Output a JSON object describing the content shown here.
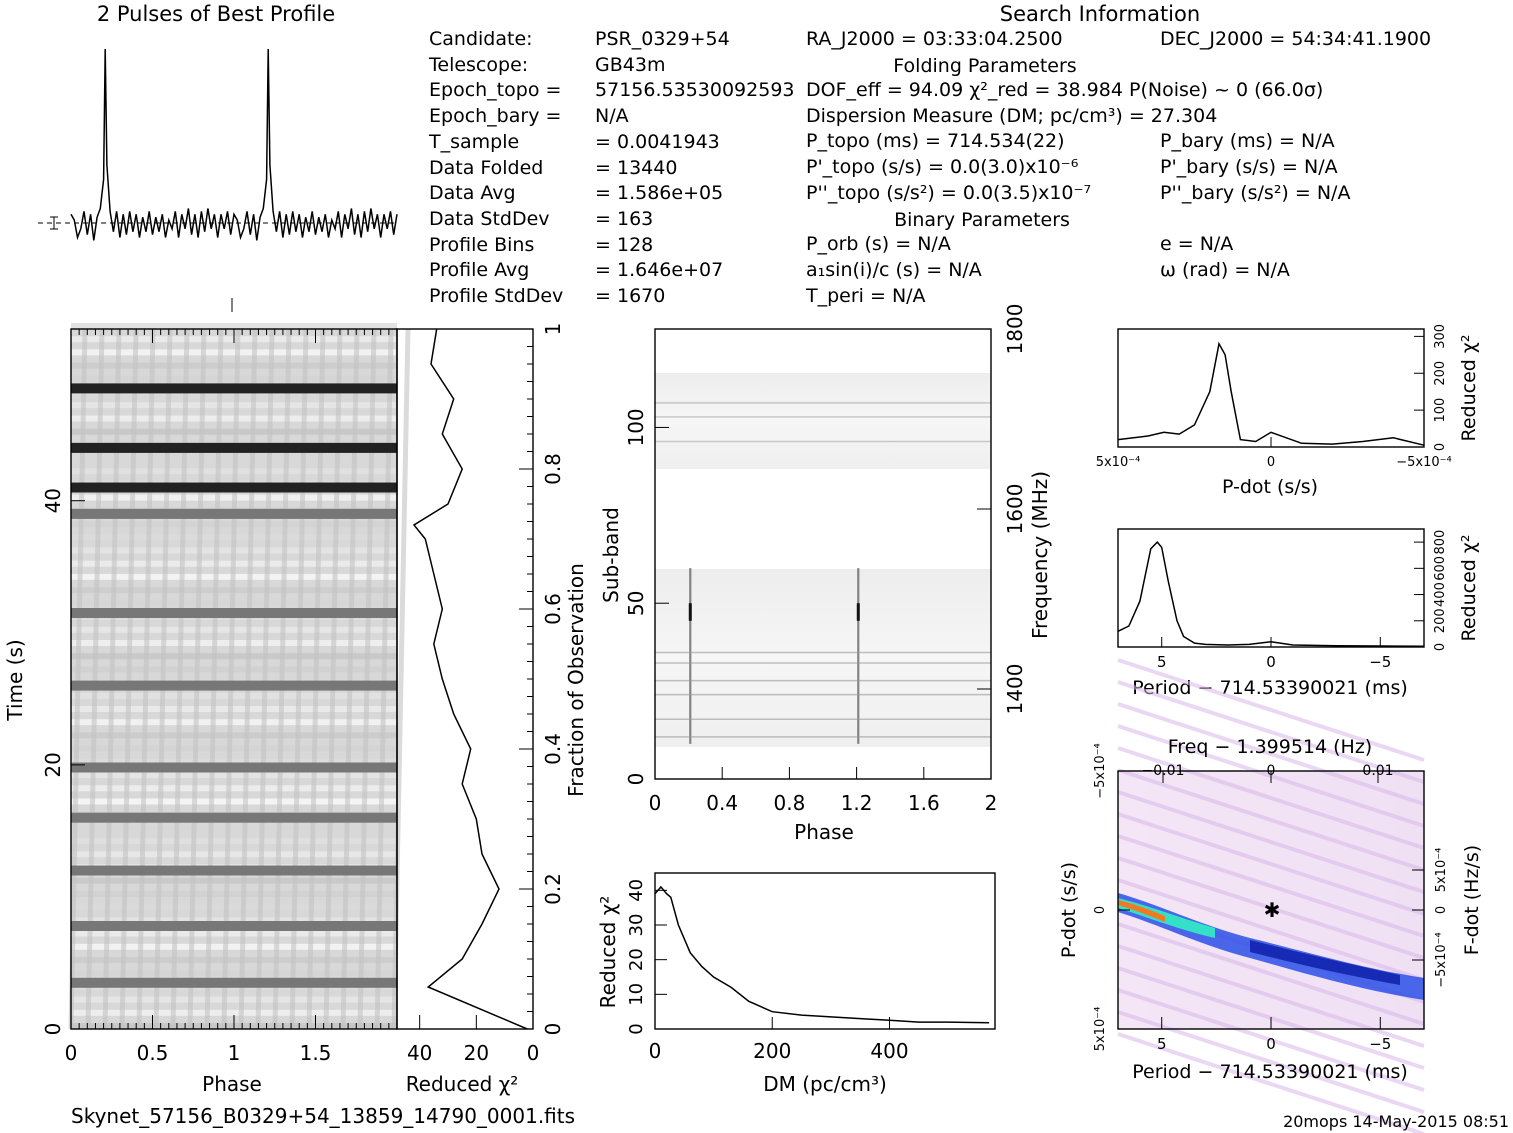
{
  "header": {
    "profile_title": "2 Pulses of Best Profile",
    "search_title": "Search Information",
    "folding_title": "Folding Parameters",
    "binary_title": "Binary Parameters"
  },
  "info_left": [
    {
      "label": "Candidate:",
      "value": "PSR_0329+54"
    },
    {
      "label": "Telescope:",
      "value": "GB43m"
    },
    {
      "label": "Epoch_topo =",
      "value": "57156.53530092593"
    },
    {
      "label": "Epoch_bary =",
      "value": "N/A"
    },
    {
      "label": "T_sample",
      "value": "= 0.0041943"
    },
    {
      "label": "Data Folded",
      "value": "= 13440"
    },
    {
      "label": "Data Avg",
      "value": "= 1.586e+05"
    },
    {
      "label": "Data StdDev",
      "value": "= 163"
    },
    {
      "label": "Profile Bins",
      "value": "= 128"
    },
    {
      "label": "Profile Avg",
      "value": "= 1.646e+07"
    },
    {
      "label": "Profile StdDev",
      "value": "= 1670"
    }
  ],
  "info_mid": [
    "RA_J2000 = 03:33:04.2500",
    "DOF_eff = 94.09  χ²_red = 38.984  P(Noise) ~ 0   (66.0σ)",
    "Dispersion Measure (DM; pc/cm³) = 27.304",
    "P_topo (ms) =  714.534(22)",
    "P'_topo (s/s) = 0.0(3.0)x10⁻⁶",
    "P''_topo (s/s²) = 0.0(3.5)x10⁻⁷",
    "P_orb (s) = N/A",
    "a₁sin(i)/c (s) = N/A",
    "T_peri = N/A"
  ],
  "info_right": [
    "DEC_J2000 = 54:34:41.1900",
    "P_bary (ms) = N/A",
    "P'_bary (s/s) = N/A",
    "P''_bary (s/s²) = N/A",
    "e = N/A",
    "ω (rad) = N/A"
  ],
  "footer": {
    "filename": "Skynet_57156_B0329+54_13859_14790_0001.fits",
    "stamp": "20mops 14-May-2015 08:51"
  },
  "chart_data": [
    {
      "type": "line",
      "name": "profile",
      "title": "2 Pulses of Best Profile",
      "x": [
        0,
        0.02,
        0.04,
        0.06,
        0.08,
        0.1,
        0.12,
        0.14,
        0.16,
        0.18,
        0.2,
        0.21,
        0.22,
        0.24,
        0.26,
        0.28,
        0.3,
        0.32,
        0.34,
        0.36,
        0.38,
        0.4,
        0.42,
        0.44,
        0.46,
        0.48,
        0.5,
        0.52,
        0.54,
        0.56,
        0.58,
        0.6,
        0.62,
        0.64,
        0.66,
        0.68,
        0.7,
        0.72,
        0.74,
        0.76,
        0.78,
        0.8,
        0.82,
        0.84,
        0.86,
        0.88,
        0.9,
        0.92,
        0.94,
        0.96,
        0.98,
        1.0
      ],
      "values": [
        0.3,
        0.1,
        -0.5,
        -0.2,
        0.4,
        -0.4,
        0.3,
        -0.6,
        0.2,
        0.5,
        1.5,
        6.0,
        2.0,
        0.4,
        -0.3,
        0.4,
        -0.5,
        0.3,
        -0.4,
        0.4,
        -0.3,
        0.3,
        -0.5,
        0.2,
        -0.3,
        0.4,
        -0.4,
        0.2,
        -0.3,
        0.3,
        -0.5,
        0.1,
        -0.2,
        0.4,
        -0.5,
        0.3,
        -0.2,
        0.5,
        -0.4,
        0.3,
        -0.5,
        0.4,
        -0.3,
        0.5,
        -0.2,
        0.3,
        -0.5,
        0.3,
        -0.2,
        0.4,
        -0.4,
        0.3
      ],
      "xlim": [
        0,
        2
      ],
      "repeat_period": 1
    },
    {
      "type": "heatmap",
      "name": "time_phase",
      "xlabel": "Phase",
      "ylabel": "Time (s)",
      "ylabel_right": "Fraction of Observation",
      "xlim": [
        0,
        2
      ],
      "ylim": [
        0,
        53
      ],
      "x_ticks": [
        "0",
        "0.5",
        "1",
        "1.5"
      ],
      "y_ticks": [
        "0",
        "20",
        "40"
      ],
      "y_ticks_right": [
        "0",
        "0.2",
        "0.4",
        "0.6",
        "0.8",
        "1"
      ],
      "dark_rows": [
        3.5,
        7.8,
        12,
        16,
        19.8,
        26,
        31.5,
        39,
        41,
        44,
        48.5
      ]
    },
    {
      "type": "line",
      "name": "time_chi2",
      "xlabel": "Reduced χ²",
      "x_ticks": [
        "40",
        "20",
        "0"
      ],
      "xlim": [
        48,
        0
      ],
      "y_fraction": [
        0,
        0.06,
        0.1,
        0.15,
        0.2,
        0.25,
        0.3,
        0.35,
        0.4,
        0.45,
        0.5,
        0.55,
        0.6,
        0.65,
        0.7,
        0.72,
        0.75,
        0.8,
        0.85,
        0.9,
        0.95,
        1.0
      ],
      "values": [
        2,
        37,
        25,
        18,
        12,
        18,
        20,
        25,
        22,
        28,
        32,
        35,
        32,
        35,
        38,
        42,
        30,
        25,
        32,
        28,
        36,
        34
      ]
    },
    {
      "type": "heatmap",
      "name": "subband_phase",
      "xlabel": "Phase",
      "ylabel": "Sub-band",
      "ylabel_right": "Frequency (MHz)",
      "x_ticks": [
        "0",
        "0.4",
        "0.8",
        "1.2",
        "1.6",
        "2"
      ],
      "y_ticks": [
        "0",
        "50",
        "100"
      ],
      "y_ticks_right": [
        "1400",
        "1600",
        "1800"
      ],
      "xlim": [
        0,
        2
      ],
      "ylim": [
        0,
        128
      ],
      "empty_band": [
        60,
        89
      ]
    },
    {
      "type": "line",
      "name": "dm_chi2",
      "xlabel": "DM (pc/cm³)",
      "ylabel": "Reduced χ²",
      "x_ticks": [
        "0",
        "200",
        "400"
      ],
      "y_ticks": [
        "0",
        "10",
        "20",
        "30",
        "40"
      ],
      "xlim": [
        0,
        580
      ],
      "ylim": [
        0,
        45
      ],
      "x": [
        0,
        10,
        20,
        27,
        40,
        60,
        80,
        100,
        130,
        160,
        200,
        250,
        300,
        350,
        400,
        450,
        500,
        570
      ],
      "values": [
        39,
        41,
        39,
        38,
        30,
        22,
        18,
        15,
        12,
        8,
        5,
        4,
        3.5,
        3,
        2.5,
        2,
        2,
        1.8
      ]
    },
    {
      "type": "line",
      "name": "pdot_chi2",
      "xlabel": "P-dot (s/s)",
      "ylabel": "Reduced χ²",
      "x_ticks": [
        "5x10⁻⁴",
        "0",
        "−5x10⁻⁴"
      ],
      "y_ticks": [
        "0",
        "100",
        "200",
        "300"
      ],
      "xlim": [
        0.0005,
        -0.0005
      ],
      "ylim": [
        0,
        320
      ],
      "x": [
        0.0005,
        0.0004,
        0.00035,
        0.0003,
        0.00025,
        0.0002,
        0.00017,
        0.00015,
        0.00013,
        0.0001,
        5e-05,
        0,
        -0.0001,
        -0.0002,
        -0.0003,
        -0.0004,
        -0.0005
      ],
      "values": [
        20,
        30,
        40,
        35,
        60,
        150,
        280,
        250,
        150,
        20,
        15,
        40,
        10,
        8,
        15,
        25,
        5
      ]
    },
    {
      "type": "line",
      "name": "period_chi2",
      "xlabel": "Period − 714.53390021 (ms)",
      "ylabel": "Reduced χ²",
      "x_ticks": [
        "5",
        "0",
        "−5"
      ],
      "y_ticks": [
        "0",
        "200",
        "400",
        "600",
        "800"
      ],
      "xlim": [
        7,
        -7
      ],
      "ylim": [
        0,
        900
      ],
      "x": [
        7,
        6.5,
        6,
        5.5,
        5.2,
        5,
        4.7,
        4.3,
        4,
        3.5,
        3,
        2,
        1,
        0,
        -1,
        -3,
        -5,
        -7
      ],
      "values": [
        120,
        160,
        350,
        750,
        800,
        760,
        500,
        200,
        80,
        30,
        20,
        15,
        20,
        40,
        15,
        10,
        8,
        5
      ]
    },
    {
      "type": "heatmap",
      "name": "period_pdot",
      "title": "Freq − 1.399514 (Hz)",
      "xlabel": "Period − 714.53390021 (ms)",
      "ylabel": "P-dot (s/s)",
      "ylabel_right": "F-dot (Hz/s)",
      "x_ticks": [
        "5",
        "0",
        "−5"
      ],
      "x_ticks_top": [
        "−0.01",
        "0",
        "0.01"
      ],
      "y_ticks": [
        "5x10⁻⁴",
        "0",
        "−5x10⁻⁴"
      ],
      "y_ticks_right": [
        "5x10⁻⁴",
        "0",
        "−5x10⁻⁴"
      ],
      "xlim": [
        7,
        -7
      ],
      "ylim": [
        0.0005,
        -0.0005
      ]
    }
  ]
}
